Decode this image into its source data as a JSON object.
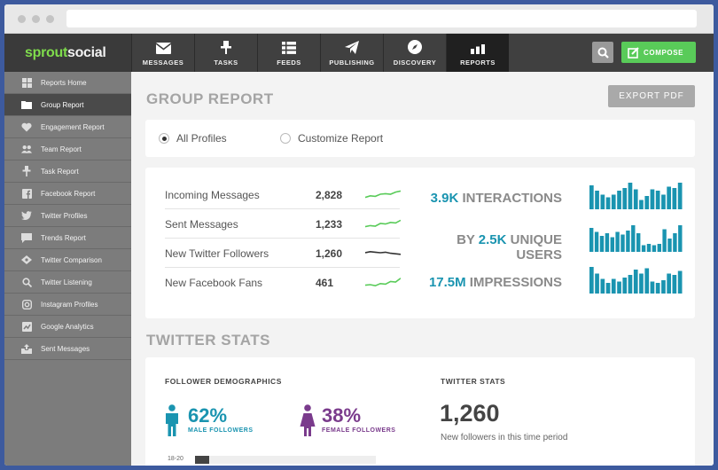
{
  "brand": {
    "part1": "sprout",
    "part2": "social"
  },
  "nav": {
    "items": [
      {
        "label": "MESSAGES",
        "icon": "envelope-icon"
      },
      {
        "label": "TASKS",
        "icon": "pin-icon"
      },
      {
        "label": "FEEDS",
        "icon": "list-icon"
      },
      {
        "label": "PUBLISHING",
        "icon": "paper-plane-icon"
      },
      {
        "label": "DISCOVERY",
        "icon": "compass-icon"
      },
      {
        "label": "REPORTS",
        "icon": "bar-chart-icon"
      }
    ],
    "active": "REPORTS",
    "compose_label": "COMPOSE"
  },
  "sidebar": {
    "items": [
      {
        "label": "Reports Home",
        "icon": "grid-icon"
      },
      {
        "label": "Group Report",
        "icon": "folder-icon"
      },
      {
        "label": "Engagement Report",
        "icon": "heart-icon"
      },
      {
        "label": "Team Report",
        "icon": "users-icon"
      },
      {
        "label": "Task Report",
        "icon": "pin-icon"
      },
      {
        "label": "Facebook Report",
        "icon": "facebook-icon"
      },
      {
        "label": "Twitter Profiles",
        "icon": "twitter-icon"
      },
      {
        "label": "Trends Report",
        "icon": "chat-icon"
      },
      {
        "label": "Twitter Comparison",
        "icon": "compare-icon"
      },
      {
        "label": "Twitter Listening",
        "icon": "search-icon"
      },
      {
        "label": "Instagram Profiles",
        "icon": "instagram-icon"
      },
      {
        "label": "Google Analytics",
        "icon": "analytics-icon"
      },
      {
        "label": "Sent Messages",
        "icon": "outbox-icon"
      }
    ],
    "active": "Group Report"
  },
  "main": {
    "title": "GROUP REPORT",
    "export_label": "EXPORT PDF",
    "radios": [
      {
        "label": "All Profiles",
        "checked": true
      },
      {
        "label": "Customize Report",
        "checked": false
      }
    ],
    "metrics": [
      {
        "label": "Incoming Messages",
        "value": "2,828",
        "trend": [
          0.2,
          0.35,
          0.3,
          0.5,
          0.55,
          0.5,
          0.7,
          0.8
        ],
        "color": "#59cb59"
      },
      {
        "label": "Sent Messages",
        "value": "1,233",
        "trend": [
          0.2,
          0.3,
          0.25,
          0.5,
          0.45,
          0.6,
          0.55,
          0.8
        ],
        "color": "#59cb59"
      },
      {
        "label": "New Twitter Followers",
        "value": "1,260",
        "trend": [
          0.5,
          0.6,
          0.55,
          0.5,
          0.55,
          0.45,
          0.4,
          0.35
        ],
        "color": "#333333"
      },
      {
        "label": "New Facebook Fans",
        "value": "461",
        "trend": [
          0.2,
          0.25,
          0.15,
          0.35,
          0.3,
          0.55,
          0.5,
          0.85
        ],
        "color": "#59cb59"
      }
    ],
    "stats": [
      {
        "prefix": "",
        "number": "3.9K",
        "suffix": " INTERACTIONS",
        "bars": [
          0.9,
          0.7,
          0.55,
          0.45,
          0.55,
          0.7,
          0.8,
          1.0,
          0.75,
          0.35,
          0.5,
          0.75,
          0.7,
          0.55,
          0.85,
          0.8,
          1.0
        ]
      },
      {
        "prefix": "BY ",
        "number": "2.5K",
        "suffix": " UNIQUE USERS",
        "bars": [
          0.9,
          0.75,
          0.6,
          0.7,
          0.55,
          0.75,
          0.65,
          0.8,
          1.0,
          0.7,
          0.25,
          0.3,
          0.25,
          0.3,
          0.85,
          0.5,
          0.7,
          1.0
        ]
      },
      {
        "prefix": "",
        "number": "17.5M",
        "suffix": " IMPRESSIONS",
        "bars": [
          1.0,
          0.75,
          0.55,
          0.4,
          0.55,
          0.45,
          0.6,
          0.7,
          0.9,
          0.75,
          0.95,
          0.45,
          0.4,
          0.5,
          0.75,
          0.7,
          0.85
        ]
      }
    ],
    "twitter_section": "TWITTER STATS",
    "demographics": {
      "title": "FOLLOWER DEMOGRAPHICS",
      "male_pct": "62%",
      "male_label": "MALE FOLLOWERS",
      "male_color": "#1a94b0",
      "female_pct": "38%",
      "female_label": "FEMALE FOLLOWERS",
      "female_color": "#7a3b8c",
      "age_label": "18-20",
      "age_fraction": 0.08
    },
    "twitter_stats": {
      "title": "TWITTER STATS",
      "value": "1,260",
      "desc": "New followers in this time period"
    }
  }
}
